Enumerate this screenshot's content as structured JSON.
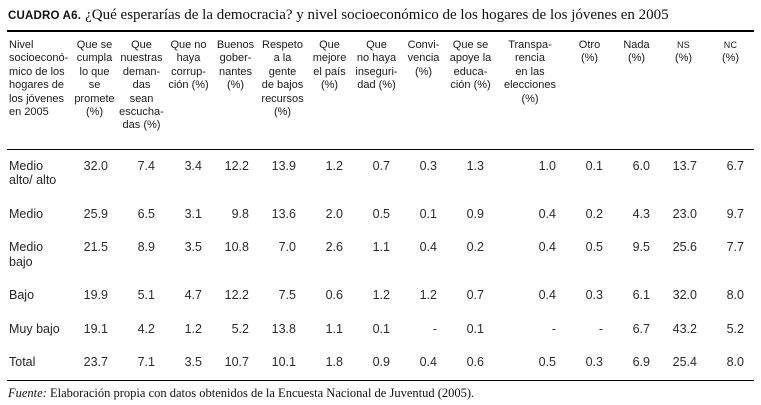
{
  "title": {
    "label": "CUADRO A6.",
    "text": "¿Qué esperarías de la democracia? y nivel socioeconómico de los hogares de los jóvenes en 2005"
  },
  "table": {
    "row_header_label": "Nivel\nsocioeconó-\nmico de los\nhogares de\nlos jóvenes\nen 2005",
    "columns": [
      "Que se\ncumpla\nlo que\nse\npromete\n(%)",
      "Que\nnuestras\ndeman-\ndas\nsean\nescucha-\ndas (%)",
      "Que no\nhaya\ncorrup-\nción (%)",
      "Buenos\ngober-\nnantes\n(%)",
      "Respeto\na la\ngente\nde bajos\nrecursos\n(%)",
      "Que\nmejore\nel país\n(%)",
      "Que\nno haya\ninseguri-\ndad (%)",
      "Convi-\nvencia\n(%)",
      "Que se\napoye la\neduca-\nción (%)",
      "Transpa-\nrencia\nen las\nelecciones\n(%)",
      "Otro\n(%)",
      "Nada\n(%)",
      "NS\n(%)",
      "NC\n(%)"
    ],
    "rows": [
      {
        "label": "Medio\nalto/ alto",
        "values": [
          "32.0",
          "7.4",
          "3.4",
          "12.2",
          "13.9",
          "1.2",
          "0.7",
          "0.3",
          "1.3",
          "1.0",
          "0.1",
          "6.0",
          "13.7",
          "6.7"
        ]
      },
      {
        "label": "Medio",
        "values": [
          "25.9",
          "6.5",
          "3.1",
          "9.8",
          "13.6",
          "2.0",
          "0.5",
          "0.1",
          "0.9",
          "0.4",
          "0.2",
          "4.3",
          "23.0",
          "9.7"
        ]
      },
      {
        "label": "Medio\nbajo",
        "values": [
          "21.5",
          "8.9",
          "3.5",
          "10.8",
          "7.0",
          "2.6",
          "1.1",
          "0.4",
          "0.2",
          "0.4",
          "0.5",
          "9.5",
          "25.6",
          "7.7"
        ]
      },
      {
        "label": "Bajo",
        "values": [
          "19.9",
          "5.1",
          "4.7",
          "12.2",
          "7.5",
          "0.6",
          "1.2",
          "1.2",
          "0.7",
          "0.4",
          "0.3",
          "6.1",
          "32.0",
          "8.0"
        ]
      },
      {
        "label": "Muy bajo",
        "values": [
          "19.1",
          "4.2",
          "1.2",
          "5.2",
          "13.8",
          "1.1",
          "0.1",
          "-",
          "0.1",
          "-",
          "-",
          "6.7",
          "43.2",
          "5.2"
        ]
      },
      {
        "label": "Total",
        "values": [
          "23.7",
          "7.1",
          "3.5",
          "10.7",
          "10.1",
          "1.8",
          "0.9",
          "0.4",
          "0.6",
          "0.5",
          "0.3",
          "6.9",
          "25.4",
          "8.0"
        ]
      }
    ]
  },
  "footer": {
    "source_label": "Fuente:",
    "source_text": "Elaboración propia con datos obtenidos de la Encuesta Nacional de Juventud (2005)."
  }
}
